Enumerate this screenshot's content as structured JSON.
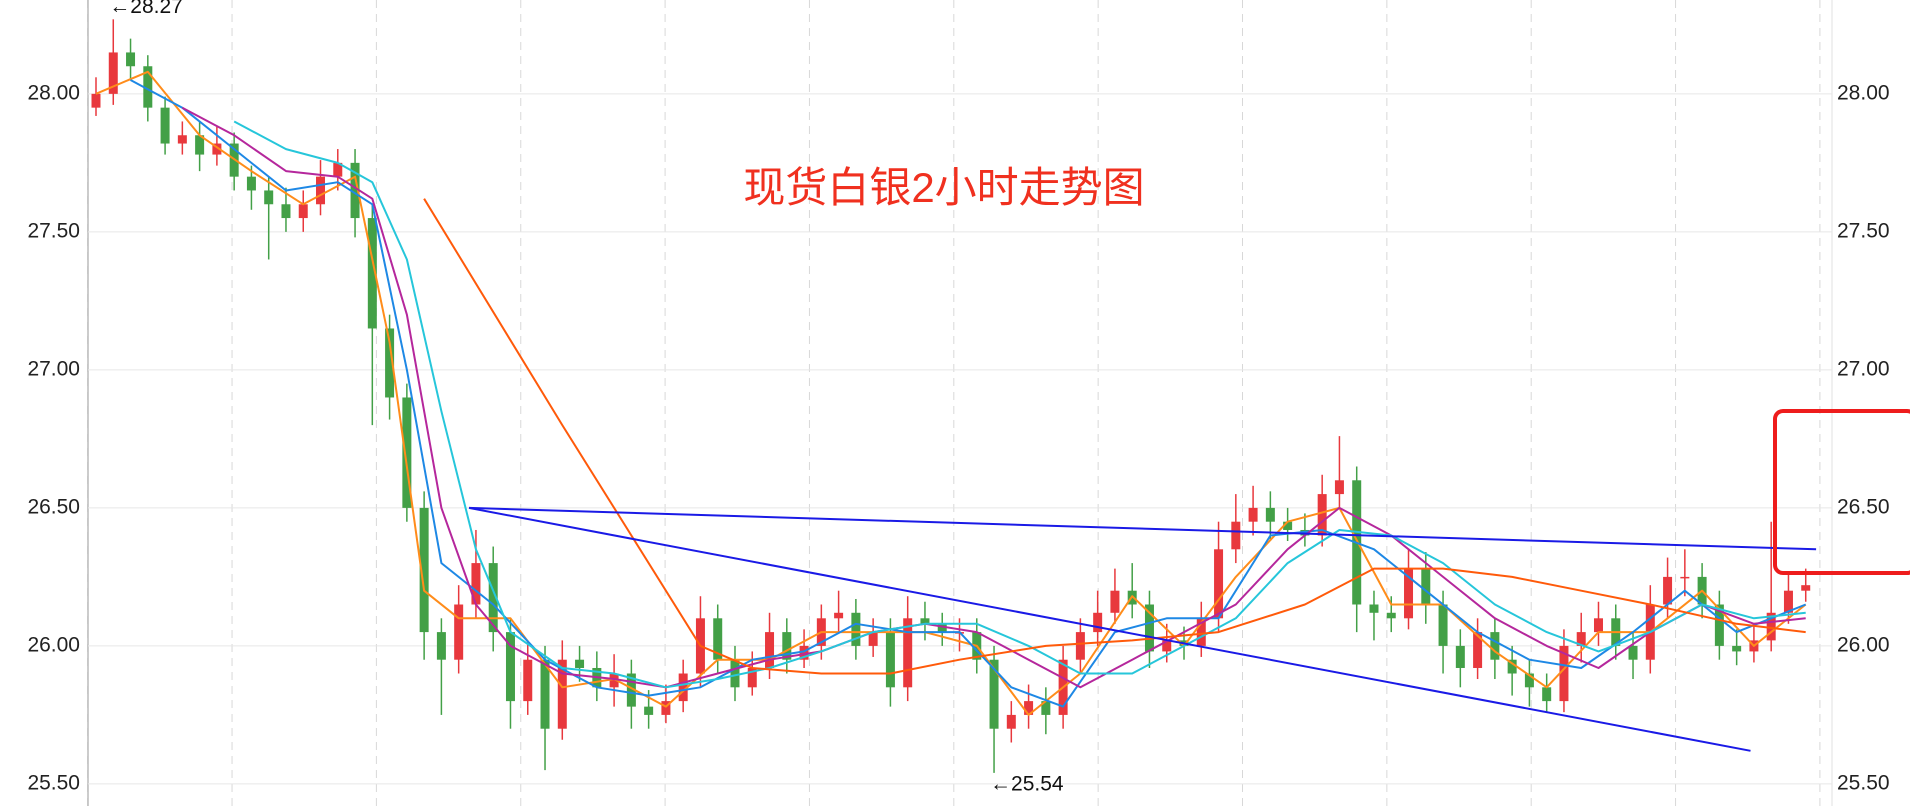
{
  "chart_data": {
    "type": "candlestick",
    "title": "现货白银2小时走势图",
    "ylim": [
      25.42,
      28.34
    ],
    "yticks": [
      {
        "value": 25.5,
        "label": "25.50"
      },
      {
        "value": 26,
        "label": "26.00"
      },
      {
        "value": 26.5,
        "label": "26.50"
      },
      {
        "value": 27,
        "label": "27.00"
      },
      {
        "value": 27.5,
        "label": "27.50"
      },
      {
        "value": 28,
        "label": "28.00"
      }
    ],
    "y2lim": [
      25.42,
      28.34
    ],
    "y2ticks": [
      {
        "value": 25.5,
        "label": "25.50"
      },
      {
        "value": 26,
        "label": "26.00"
      },
      {
        "value": 26.5,
        "label": "26.50"
      },
      {
        "value": 27,
        "label": "27.00"
      },
      {
        "value": 27.5,
        "label": "27.50"
      },
      {
        "value": 28,
        "label": "28.00"
      }
    ],
    "grid": true,
    "up_color": "#e8383d",
    "down_color": "#43a047",
    "open": [
      27.95,
      28.0,
      28.15,
      28.1,
      27.95,
      27.82,
      27.85,
      27.78,
      27.82,
      27.7,
      27.65,
      27.6,
      27.55,
      27.6,
      27.7,
      27.75,
      27.55,
      27.15,
      26.9,
      26.5,
      26.05,
      25.95,
      26.15,
      26.3,
      26.05,
      25.8,
      25.95,
      25.7,
      25.95,
      25.92,
      25.85,
      25.9,
      25.78,
      25.75,
      25.8,
      25.9,
      26.1,
      25.95,
      25.85,
      25.92,
      26.05,
      25.95,
      26.0,
      26.1,
      26.12,
      26.0,
      26.05,
      25.85,
      26.1,
      26.08,
      26.05,
      26.05,
      25.95,
      25.7,
      25.75,
      25.8,
      25.75,
      25.95,
      26.05,
      26.12,
      26.2,
      26.15,
      25.98,
      26.02,
      26.0,
      26.1,
      26.35,
      26.45,
      26.5,
      26.45,
      26.42,
      26.4,
      26.55,
      26.6,
      26.15,
      26.12,
      26.1,
      26.28,
      26.15,
      26.0,
      25.92,
      26.05,
      25.95,
      25.9,
      25.85,
      25.8,
      26.0,
      26.05,
      26.1,
      26.0,
      25.95,
      26.15,
      26.25,
      26.25,
      26.15,
      26.0,
      25.98,
      26.02,
      26.12,
      26.2
    ],
    "high": [
      28.06,
      28.27,
      28.2,
      28.14,
      27.99,
      27.9,
      27.9,
      27.88,
      27.86,
      27.74,
      27.7,
      27.66,
      27.65,
      27.76,
      27.8,
      27.8,
      27.6,
      27.2,
      26.95,
      26.56,
      26.1,
      26.22,
      26.42,
      26.36,
      26.1,
      26.02,
      26.0,
      26.02,
      26.0,
      25.98,
      25.97,
      25.95,
      25.84,
      25.86,
      25.95,
      26.18,
      26.15,
      26.0,
      25.98,
      26.12,
      26.1,
      26.06,
      26.15,
      26.2,
      26.17,
      26.1,
      26.1,
      26.18,
      26.16,
      26.12,
      26.1,
      26.1,
      26.0,
      25.8,
      25.86,
      25.85,
      26.0,
      26.1,
      26.2,
      26.28,
      26.3,
      26.2,
      26.08,
      26.07,
      26.16,
      26.45,
      26.55,
      26.58,
      26.56,
      26.5,
      26.48,
      26.62,
      26.76,
      26.65,
      26.2,
      26.18,
      26.35,
      26.34,
      26.2,
      26.06,
      26.1,
      26.1,
      26.0,
      25.95,
      25.9,
      26.06,
      26.12,
      26.16,
      26.15,
      26.05,
      26.22,
      26.32,
      26.35,
      26.3,
      26.2,
      26.06,
      26.08,
      26.45,
      26.27,
      26.28
    ],
    "low": [
      27.92,
      27.96,
      28.05,
      27.9,
      27.78,
      27.78,
      27.72,
      27.74,
      27.65,
      27.58,
      27.4,
      27.5,
      27.5,
      27.56,
      27.65,
      27.48,
      26.8,
      26.82,
      26.45,
      25.95,
      25.75,
      25.9,
      26.1,
      25.98,
      25.7,
      25.75,
      25.55,
      25.66,
      25.87,
      25.8,
      25.78,
      25.7,
      25.7,
      25.72,
      25.76,
      25.85,
      25.9,
      25.8,
      25.82,
      25.88,
      25.9,
      25.92,
      25.95,
      26.05,
      25.95,
      25.96,
      25.78,
      25.8,
      26.02,
      26.0,
      25.98,
      25.9,
      25.54,
      25.65,
      25.7,
      25.68,
      25.7,
      25.9,
      26.0,
      26.08,
      26.1,
      25.92,
      25.94,
      25.95,
      25.96,
      26.05,
      26.3,
      26.4,
      26.38,
      26.38,
      26.36,
      26.36,
      26.5,
      26.05,
      26.02,
      26.05,
      26.06,
      26.08,
      25.9,
      25.85,
      25.88,
      25.88,
      25.82,
      25.78,
      25.76,
      25.76,
      25.94,
      26.0,
      25.95,
      25.88,
      25.9,
      26.1,
      26.18,
      26.1,
      25.95,
      25.93,
      25.94,
      25.98,
      26.08,
      26.16
    ],
    "close": [
      28.0,
      28.15,
      28.1,
      27.95,
      27.82,
      27.85,
      27.78,
      27.82,
      27.7,
      27.65,
      27.6,
      27.55,
      27.6,
      27.7,
      27.75,
      27.55,
      27.15,
      26.9,
      26.5,
      26.05,
      25.95,
      26.15,
      26.3,
      26.05,
      25.8,
      25.95,
      25.7,
      25.95,
      25.92,
      25.85,
      25.9,
      25.78,
      25.75,
      25.8,
      25.9,
      26.1,
      25.95,
      25.85,
      25.92,
      26.05,
      25.95,
      26.0,
      26.1,
      26.12,
      26.0,
      26.05,
      25.85,
      26.1,
      26.08,
      26.05,
      26.05,
      25.95,
      25.7,
      25.75,
      25.8,
      25.75,
      25.95,
      26.05,
      26.12,
      26.2,
      26.15,
      25.98,
      26.02,
      26.0,
      26.1,
      26.35,
      26.45,
      26.5,
      26.45,
      26.42,
      26.4,
      26.55,
      26.6,
      26.15,
      26.12,
      26.1,
      26.28,
      26.15,
      26.0,
      25.92,
      26.05,
      25.95,
      25.9,
      25.85,
      25.8,
      26.0,
      26.05,
      26.1,
      26.0,
      25.95,
      26.15,
      26.25,
      26.25,
      26.15,
      26.0,
      25.98,
      26.02,
      26.12,
      26.2,
      26.22
    ],
    "lines": [
      {
        "color": "#ff8c1a",
        "x": [
          0,
          3,
          6,
          9,
          12,
          15,
          17,
          19,
          21,
          24,
          27,
          30,
          33,
          36,
          39,
          42,
          45,
          48,
          51,
          54,
          57,
          60,
          63,
          66,
          69,
          72,
          75,
          78,
          81,
          84,
          87,
          90,
          93,
          96,
          99
        ],
        "values": [
          28.0,
          28.08,
          27.85,
          27.72,
          27.6,
          27.7,
          27.1,
          26.2,
          26.1,
          26.1,
          25.85,
          25.88,
          25.78,
          25.95,
          25.95,
          26.05,
          26.05,
          26.05,
          26.0,
          25.75,
          25.9,
          26.18,
          26.0,
          26.25,
          26.45,
          26.5,
          26.15,
          26.15,
          25.98,
          25.85,
          26.05,
          26.05,
          26.2,
          26.0,
          26.15
        ]
      },
      {
        "color": "#1e88e5",
        "x": [
          2,
          5,
          8,
          11,
          14,
          16,
          18,
          20,
          23,
          26,
          29,
          32,
          35,
          38,
          41,
          44,
          47,
          50,
          53,
          56,
          59,
          62,
          65,
          68,
          71,
          74,
          77,
          80,
          83,
          86,
          89,
          92,
          95,
          99
        ],
        "values": [
          28.05,
          27.95,
          27.8,
          27.65,
          27.68,
          27.6,
          27.0,
          26.3,
          26.15,
          25.95,
          25.85,
          25.82,
          25.85,
          25.95,
          25.98,
          26.08,
          26.05,
          26.05,
          25.85,
          25.78,
          26.05,
          26.1,
          26.1,
          26.4,
          26.42,
          26.35,
          26.2,
          26.05,
          25.95,
          25.92,
          26.05,
          26.2,
          26.05,
          26.15
        ]
      },
      {
        "color": "#b5279c",
        "x": [
          5,
          8,
          11,
          14,
          16,
          18,
          20,
          22,
          24,
          27,
          30,
          33,
          36,
          39,
          42,
          45,
          48,
          51,
          54,
          57,
          60,
          63,
          66,
          69,
          72,
          75,
          78,
          81,
          84,
          87,
          90,
          93,
          96,
          99
        ],
        "values": [
          27.95,
          27.85,
          27.72,
          27.7,
          27.62,
          27.2,
          26.5,
          26.15,
          26.0,
          25.9,
          25.88,
          25.85,
          25.9,
          25.95,
          25.98,
          26.05,
          26.08,
          26.05,
          25.95,
          25.85,
          25.95,
          26.05,
          26.15,
          26.35,
          26.5,
          26.4,
          26.25,
          26.1,
          26.0,
          25.92,
          26.05,
          26.15,
          26.08,
          26.1
        ]
      },
      {
        "color": "#26c6da",
        "x": [
          8,
          11,
          14,
          16,
          18,
          20,
          22,
          24,
          27,
          30,
          33,
          36,
          39,
          42,
          45,
          48,
          51,
          54,
          57,
          60,
          63,
          66,
          69,
          72,
          75,
          78,
          81,
          84,
          87,
          90,
          93,
          96,
          99
        ],
        "values": [
          27.9,
          27.8,
          27.75,
          27.68,
          27.4,
          26.85,
          26.35,
          26.05,
          25.92,
          25.9,
          25.85,
          25.88,
          25.92,
          25.98,
          26.05,
          26.08,
          26.08,
          26.0,
          25.9,
          25.9,
          26.0,
          26.1,
          26.3,
          26.42,
          26.4,
          26.3,
          26.15,
          26.05,
          25.98,
          26.05,
          26.15,
          26.1,
          26.12
        ]
      },
      {
        "color": "#ff5a0a",
        "x": [
          19,
          27,
          31,
          35,
          38,
          42,
          46,
          50,
          55,
          60,
          65,
          70,
          74,
          78,
          82,
          86,
          90,
          95,
          99
        ],
        "values": [
          27.62,
          26.8,
          26.4,
          26.0,
          25.92,
          25.9,
          25.9,
          25.95,
          26.0,
          26.02,
          26.05,
          26.15,
          26.28,
          26.28,
          26.25,
          26.2,
          26.15,
          26.08,
          26.05
        ]
      }
    ],
    "trend_lines": [
      {
        "color": "#1a1ae6",
        "x": [
          21.6,
          99.6
        ],
        "values": [
          26.5,
          26.35
        ]
      },
      {
        "color": "#1a1ae6",
        "x": [
          21.6,
          95.8
        ],
        "values": [
          26.5,
          25.62
        ]
      }
    ],
    "annotations": [
      {
        "label": "←28.27",
        "x": 1,
        "value": 28.27,
        "side": "above"
      },
      {
        "label": "←25.54",
        "x": 52,
        "value": 25.54,
        "side": "below"
      }
    ]
  }
}
